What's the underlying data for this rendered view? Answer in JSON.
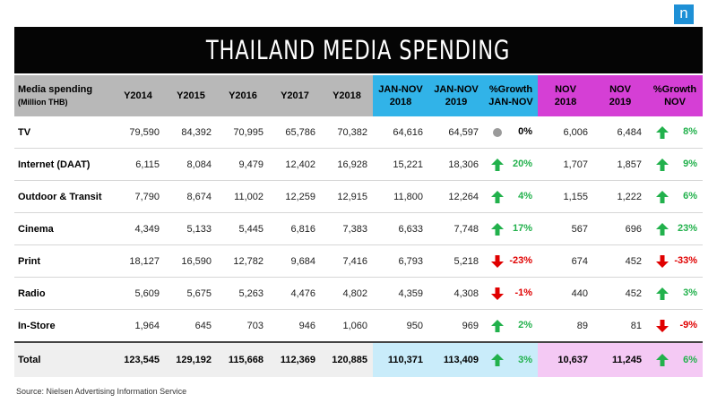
{
  "logo": "n",
  "title": "THAILAND MEDIA SPENDING",
  "header": {
    "media": "Media spending",
    "media_sub": "(Million THB)",
    "years": [
      "Y2014",
      "Y2015",
      "Y2016",
      "Y2017",
      "Y2018"
    ],
    "jan_nov_2018": [
      "JAN-NOV",
      "2018"
    ],
    "jan_nov_2019": [
      "JAN-NOV",
      "2019"
    ],
    "growth_jan_nov": [
      "%Growth",
      "JAN-NOV"
    ],
    "nov_2018": [
      "NOV",
      "2018"
    ],
    "nov_2019": [
      "NOV",
      "2019"
    ],
    "growth_nov": [
      "%Growth",
      "NOV"
    ]
  },
  "rows": [
    {
      "label": "TV",
      "years": [
        "79,590",
        "84,392",
        "70,995",
        "65,786",
        "70,382"
      ],
      "jn18": "64,616",
      "jn19": "64,597",
      "g1": "0%",
      "g1dir": "flat",
      "n18": "6,006",
      "n19": "6,484",
      "g2": "8%",
      "g2dir": "up"
    },
    {
      "label": "Internet (DAAT)",
      "years": [
        "6,115",
        "8,084",
        "9,479",
        "12,402",
        "16,928"
      ],
      "jn18": "15,221",
      "jn19": "18,306",
      "g1": "20%",
      "g1dir": "up",
      "n18": "1,707",
      "n19": "1,857",
      "g2": "9%",
      "g2dir": "up"
    },
    {
      "label": "Outdoor & Transit",
      "years": [
        "7,790",
        "8,674",
        "11,002",
        "12,259",
        "12,915"
      ],
      "jn18": "11,800",
      "jn19": "12,264",
      "g1": "4%",
      "g1dir": "up",
      "n18": "1,155",
      "n19": "1,222",
      "g2": "6%",
      "g2dir": "up"
    },
    {
      "label": "Cinema",
      "years": [
        "4,349",
        "5,133",
        "5,445",
        "6,816",
        "7,383"
      ],
      "jn18": "6,633",
      "jn19": "7,748",
      "g1": "17%",
      "g1dir": "up",
      "n18": "567",
      "n19": "696",
      "g2": "23%",
      "g2dir": "up"
    },
    {
      "label": "Print",
      "years": [
        "18,127",
        "16,590",
        "12,782",
        "9,684",
        "7,416"
      ],
      "jn18": "6,793",
      "jn19": "5,218",
      "g1": "-23%",
      "g1dir": "down",
      "n18": "674",
      "n19": "452",
      "g2": "-33%",
      "g2dir": "down"
    },
    {
      "label": "Radio",
      "years": [
        "5,609",
        "5,675",
        "5,263",
        "4,476",
        "4,802"
      ],
      "jn18": "4,359",
      "jn19": "4,308",
      "g1": "-1%",
      "g1dir": "down",
      "n18": "440",
      "n19": "452",
      "g2": "3%",
      "g2dir": "up"
    },
    {
      "label": "In-Store",
      "years": [
        "1,964",
        "645",
        "703",
        "946",
        "1,060"
      ],
      "jn18": "950",
      "jn19": "969",
      "g1": "2%",
      "g1dir": "up",
      "n18": "89",
      "n19": "81",
      "g2": "-9%",
      "g2dir": "down"
    }
  ],
  "total": {
    "label": "Total",
    "years": [
      "123,545",
      "129,192",
      "115,668",
      "112,369",
      "120,885"
    ],
    "jn18": "110,371",
    "jn19": "113,409",
    "g1": "3%",
    "g1dir": "up",
    "n18": "10,637",
    "n19": "11,245",
    "g2": "6%",
    "g2dir": "up"
  },
  "colors": {
    "gray_header": "#b8b8b8",
    "blue_header": "#31b3e8",
    "pink_header": "#d53fd5",
    "up": "#22b14c",
    "down": "#e00000",
    "flat": "#9a9a9a"
  },
  "source": "Source: Nielsen Advertising Information Service"
}
